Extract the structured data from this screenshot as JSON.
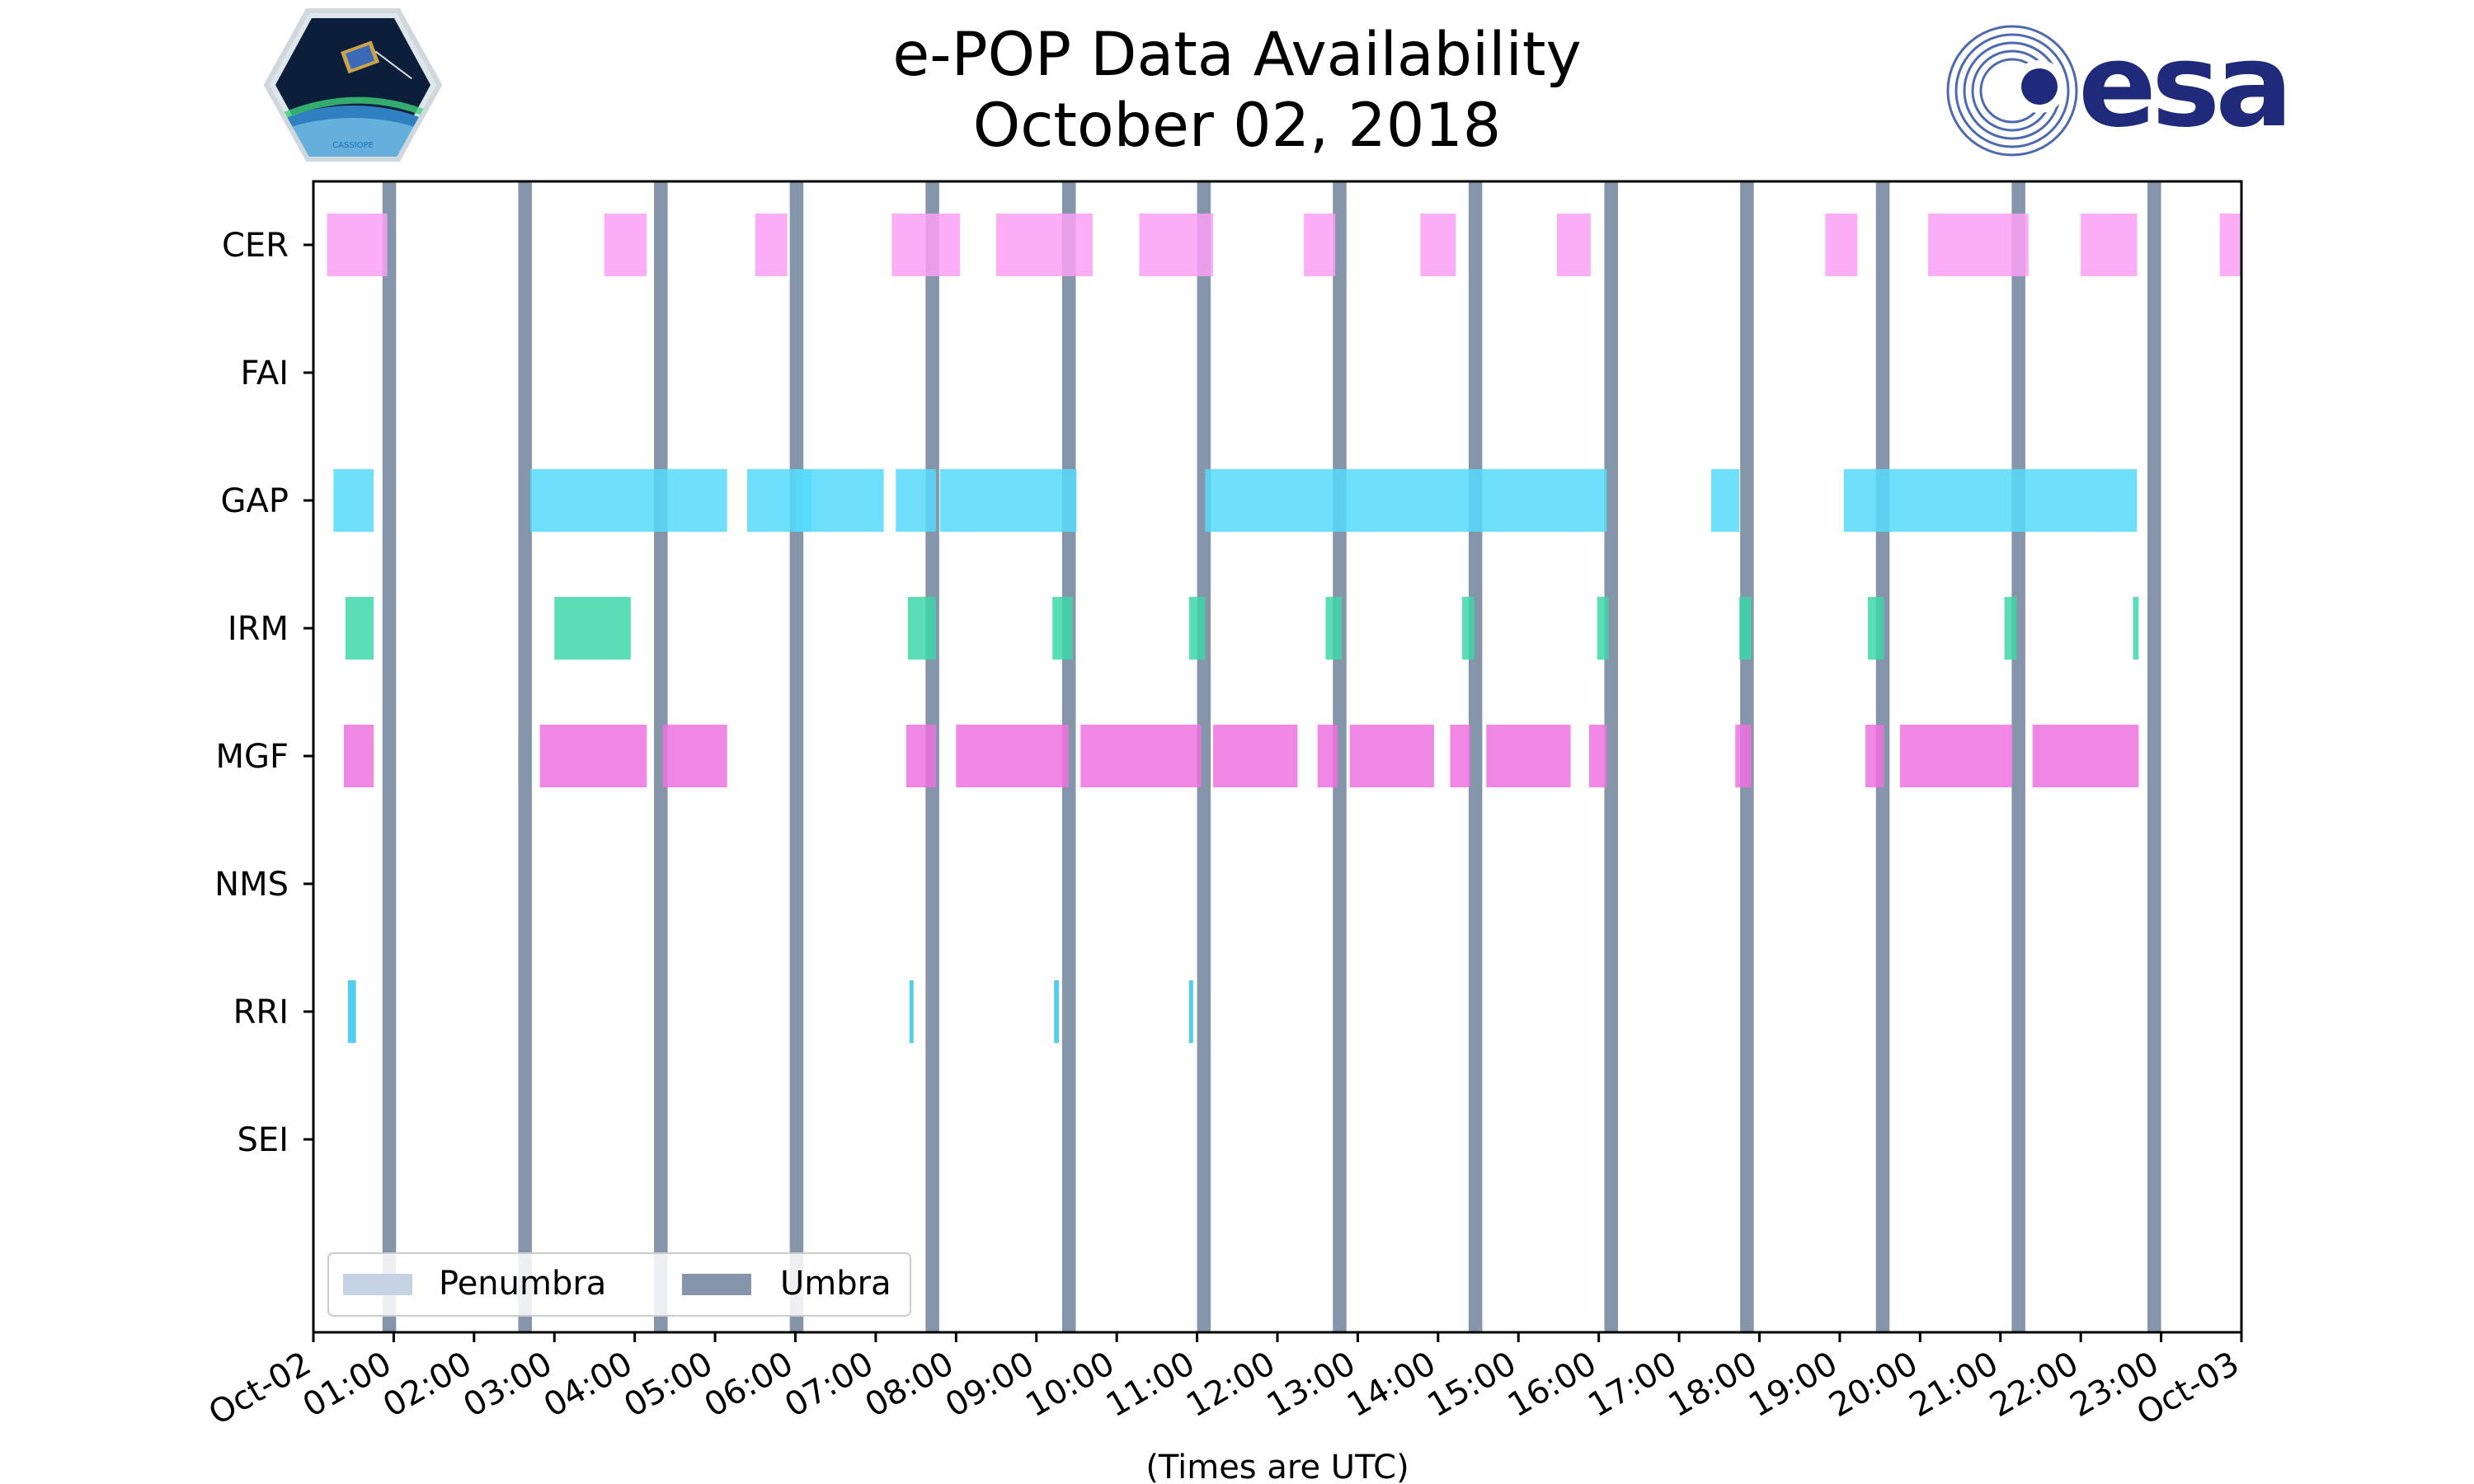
{
  "title_line1": "e-POP Data Availability",
  "title_line2": "October 02, 2018",
  "logos": {
    "left_logo": "CASSIOPE",
    "right_logo": "esa"
  },
  "colors": {
    "CER": "#faa0f5",
    "GAP": "#55dbfa",
    "IRM": "#3ed7a9",
    "MGF": "#ef72e0",
    "RRI": "#37c4ee",
    "penumbra": "#c5d3e4",
    "umbra": "#8696aa"
  },
  "chart_data": {
    "type": "timeline",
    "title": "e-POP Data Availability October 02, 2018",
    "xlabel": "(Times are UTC)",
    "xlim_hours": [
      0,
      24
    ],
    "x_tick_labels": [
      "Oct-02",
      "01:00",
      "02:00",
      "03:00",
      "04:00",
      "05:00",
      "06:00",
      "07:00",
      "08:00",
      "09:00",
      "10:00",
      "11:00",
      "12:00",
      "13:00",
      "14:00",
      "15:00",
      "16:00",
      "17:00",
      "18:00",
      "19:00",
      "20:00",
      "21:00",
      "22:00",
      "23:00",
      "Oct-03"
    ],
    "instruments": [
      "CER",
      "FAI",
      "GAP",
      "IRM",
      "MGF",
      "NMS",
      "RRI",
      "SEI"
    ],
    "intervals_hours": {
      "CER": [
        [
          0.17,
          0.92
        ],
        [
          3.62,
          4.15
        ],
        [
          5.5,
          5.9
        ],
        [
          7.2,
          8.05
        ],
        [
          8.5,
          9.7
        ],
        [
          10.28,
          11.2
        ],
        [
          12.33,
          12.72
        ],
        [
          13.78,
          14.22
        ],
        [
          15.48,
          15.9
        ],
        [
          18.82,
          19.22
        ],
        [
          20.1,
          21.35
        ],
        [
          22.0,
          22.7
        ],
        [
          23.73,
          24.0
        ]
      ],
      "FAI": [],
      "GAP": [
        [
          0.25,
          0.75
        ],
        [
          2.7,
          5.15
        ],
        [
          5.4,
          6.2
        ],
        [
          6.0,
          7.1
        ],
        [
          7.25,
          7.75
        ],
        [
          7.8,
          9.5
        ],
        [
          11.1,
          16.1
        ],
        [
          17.4,
          17.75
        ],
        [
          19.05,
          22.7
        ]
      ],
      "IRM": [
        [
          0.4,
          0.75
        ],
        [
          3.0,
          3.95
        ],
        [
          7.4,
          7.75
        ],
        [
          9.2,
          9.45
        ],
        [
          10.9,
          11.1
        ],
        [
          12.6,
          12.8
        ],
        [
          14.3,
          14.45
        ],
        [
          15.98,
          16.12
        ],
        [
          17.75,
          17.9
        ],
        [
          19.35,
          19.55
        ],
        [
          21.05,
          21.2
        ],
        [
          22.65,
          22.72
        ]
      ],
      "MGF": [
        [
          0.38,
          0.75
        ],
        [
          2.82,
          4.15
        ],
        [
          4.35,
          5.15
        ],
        [
          7.38,
          7.75
        ],
        [
          8.0,
          9.4
        ],
        [
          9.55,
          11.05
        ],
        [
          11.2,
          12.25
        ],
        [
          12.5,
          12.75
        ],
        [
          12.9,
          13.95
        ],
        [
          14.15,
          14.4
        ],
        [
          14.6,
          15.65
        ],
        [
          15.88,
          16.1
        ],
        [
          17.7,
          17.9
        ],
        [
          19.32,
          19.55
        ],
        [
          19.75,
          21.15
        ],
        [
          21.4,
          22.72
        ]
      ],
      "NMS": [],
      "RRI": [
        [
          0.43,
          0.53
        ],
        [
          7.42,
          7.47
        ],
        [
          9.22,
          9.28
        ],
        [
          10.9,
          10.95
        ]
      ],
      "SEI": []
    },
    "umbra_intervals_hours": [
      [
        0.86,
        1.03
      ],
      [
        2.55,
        2.72
      ],
      [
        4.24,
        4.41
      ],
      [
        5.93,
        6.1
      ],
      [
        7.62,
        7.79
      ],
      [
        9.32,
        9.49
      ],
      [
        11.0,
        11.17
      ],
      [
        12.69,
        12.86
      ],
      [
        14.38,
        14.55
      ],
      [
        16.07,
        16.24
      ],
      [
        17.76,
        17.93
      ],
      [
        19.45,
        19.62
      ],
      [
        21.14,
        21.31
      ],
      [
        22.83,
        23.0
      ]
    ],
    "legend": [
      "Penumbra",
      "Umbra"
    ],
    "legend_position": "lower-left"
  }
}
